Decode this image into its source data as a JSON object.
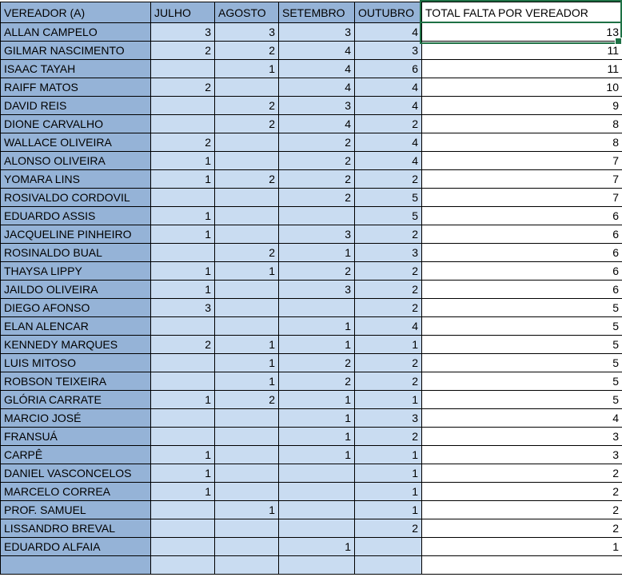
{
  "colors": {
    "header_fill": "#95B3D7",
    "month_fill": "#C9DCF1",
    "total_fill": "#FFFFFF",
    "grid": "#000000",
    "selection": "#1E7145",
    "text": "#000000"
  },
  "table": {
    "columns": [
      "VEREADOR (A)",
      "JULHO",
      "AGOSTO",
      "SETEMBRO",
      "OUTUBRO",
      "TOTAL FALTA POR VEREADOR"
    ],
    "rows": [
      [
        "ALLAN CAMPELO",
        "3",
        "3",
        "3",
        "4",
        "13"
      ],
      [
        "GILMAR NASCIMENTO",
        "2",
        "2",
        "4",
        "3",
        "11"
      ],
      [
        "ISAAC TAYAH",
        "",
        "1",
        "4",
        "6",
        "11"
      ],
      [
        "RAIFF MATOS",
        "2",
        "",
        "4",
        "4",
        "10"
      ],
      [
        "DAVID REIS",
        "",
        "2",
        "3",
        "4",
        "9"
      ],
      [
        "DIONE CARVALHO",
        "",
        "2",
        "4",
        "2",
        "8"
      ],
      [
        "WALLACE OLIVEIRA",
        "2",
        "",
        "2",
        "4",
        "8"
      ],
      [
        "ALONSO OLIVEIRA",
        "1",
        "",
        "2",
        "4",
        "7"
      ],
      [
        "YOMARA LINS",
        "1",
        "2",
        "2",
        "2",
        "7"
      ],
      [
        "ROSIVALDO CORDOVIL",
        "",
        "",
        "2",
        "5",
        "7"
      ],
      [
        "EDUARDO ASSIS",
        "1",
        "",
        "",
        "5",
        "6"
      ],
      [
        "JACQUELINE PINHEIRO",
        "1",
        "",
        "3",
        "2",
        "6"
      ],
      [
        "ROSINALDO BUAL",
        "",
        "2",
        "1",
        "3",
        "6"
      ],
      [
        "THAYSA LIPPY",
        "1",
        "1",
        "2",
        "2",
        "6"
      ],
      [
        "JAILDO OLIVEIRA",
        "1",
        "",
        "3",
        "2",
        "6"
      ],
      [
        "DIEGO AFONSO",
        "3",
        "",
        "",
        "2",
        "5"
      ],
      [
        "ELAN ALENCAR",
        "",
        "",
        "1",
        "4",
        "5"
      ],
      [
        "KENNEDY MARQUES",
        "2",
        "1",
        "1",
        "1",
        "5"
      ],
      [
        "LUIS MITOSO",
        "",
        "1",
        "2",
        "2",
        "5"
      ],
      [
        "ROBSON TEIXEIRA",
        "",
        "1",
        "2",
        "2",
        "5"
      ],
      [
        "GLÓRIA CARRATE",
        "1",
        "2",
        "1",
        "1",
        "5"
      ],
      [
        "MARCIO JOSÉ",
        "",
        "",
        "1",
        "3",
        "4"
      ],
      [
        "FRANSUÁ",
        "",
        "",
        "1",
        "2",
        "3"
      ],
      [
        "CARPÊ",
        "1",
        "",
        "1",
        "1",
        "3"
      ],
      [
        "DANIEL VASCONCELOS",
        "1",
        "",
        "",
        "1",
        "2"
      ],
      [
        "MARCELO CORREA",
        "1",
        "",
        "",
        "1",
        "2"
      ],
      [
        "PROF. SAMUEL",
        "",
        "1",
        "",
        "1",
        "2"
      ],
      [
        "LISSANDRO BREVAL",
        "",
        "",
        "",
        "2",
        "2"
      ],
      [
        "EDUARDO ALFAIA",
        "",
        "",
        "1",
        "",
        "1"
      ]
    ]
  },
  "selection": {
    "column": "TOTAL FALTA POR VEREADOR",
    "active_value": "13"
  }
}
